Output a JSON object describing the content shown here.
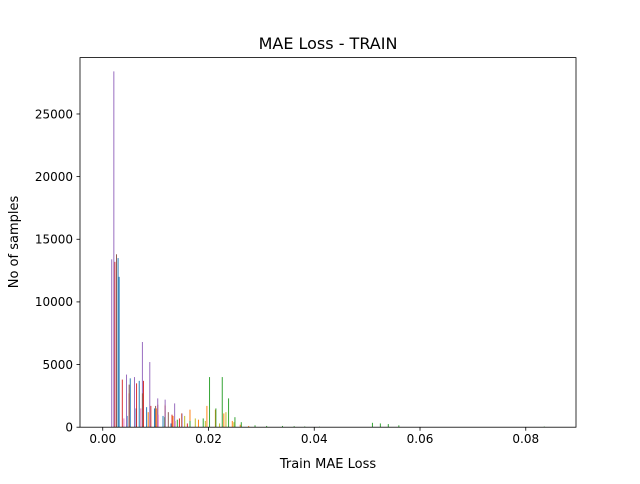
{
  "chart_data": {
    "type": "bar",
    "title": "MAE Loss - TRAIN",
    "xlabel": "Train MAE Loss",
    "ylabel": "No of samples",
    "xlim": [
      -0.0043,
      0.0895
    ],
    "ylim": [
      0,
      29500
    ],
    "xticks": [
      0.0,
      0.02,
      0.04,
      0.06,
      0.08
    ],
    "xtick_labels": [
      "0.00",
      "0.02",
      "0.04",
      "0.06",
      "0.08"
    ],
    "yticks": [
      0,
      5000,
      10000,
      15000,
      20000,
      25000
    ],
    "ytick_labels": [
      "0",
      "5000",
      "10000",
      "15000",
      "20000",
      "25000"
    ],
    "grid": false,
    "legend": "none",
    "bar_width_data": 0.00018,
    "series": [
      {
        "color": "#1f77b4",
        "x": [
          0.0029,
          0.0031,
          0.0046,
          0.0052,
          0.0063,
          0.0069,
          0.0083,
          0.0098,
          0.0114,
          0.0129
        ],
        "values": [
          13500,
          12000,
          900,
          3900,
          1500,
          3700,
          1600,
          1500,
          900,
          300
        ]
      },
      {
        "color": "#ff7f0e",
        "x": [
          0.0086,
          0.0102,
          0.0118,
          0.0133,
          0.0149,
          0.0165,
          0.0181,
          0.0197,
          0.0213,
          0.0229,
          0.0245,
          0.026,
          0.0276
        ],
        "values": [
          1200,
          1500,
          1800,
          900,
          1100,
          1400,
          600,
          1700,
          1400,
          1100,
          500,
          200,
          100
        ]
      },
      {
        "color": "#2ca02c",
        "x": [
          0.0117,
          0.0141,
          0.0165,
          0.019,
          0.0202,
          0.0214,
          0.0226,
          0.0238,
          0.025,
          0.0262,
          0.0288,
          0.031,
          0.034,
          0.0362,
          0.0382,
          0.041,
          0.051,
          0.0525,
          0.054,
          0.056,
          0.0835
        ],
        "values": [
          800,
          600,
          500,
          700,
          4000,
          1500,
          4000,
          2300,
          800,
          400,
          150,
          100,
          100,
          80,
          60,
          40,
          350,
          300,
          250,
          150,
          50
        ]
      },
      {
        "color": "#d62728",
        "x": [
          0.0023,
          0.0037,
          0.005,
          0.0064,
          0.0077,
          0.0091,
          0.0104,
          0.0118,
          0.0131,
          0.0145,
          0.016
        ],
        "values": [
          13200,
          3800,
          2700,
          3500,
          3700,
          1700,
          1800,
          1700,
          1000,
          700,
          300
        ]
      },
      {
        "color": "#9467bd",
        "x": [
          0.0017,
          0.0021,
          0.0045,
          0.006,
          0.0075,
          0.0089,
          0.0104,
          0.0118,
          0.0136,
          0.015
        ],
        "values": [
          13400,
          28400,
          4200,
          4000,
          6800,
          5200,
          2300,
          2200,
          1900,
          1100
        ]
      },
      {
        "color": "#8c564b",
        "x": [
          0.0026,
          0.005,
          0.0075,
          0.01,
          0.0124
        ],
        "values": [
          13800,
          3400,
          2700,
          1700,
          1200
        ]
      },
      {
        "color": "#e377c2",
        "x": [
          0.004,
          0.0072,
          0.0105,
          0.0137
        ],
        "values": [
          700,
          1500,
          1000,
          500
        ]
      },
      {
        "color": "#bcbd22",
        "x": [
          0.0155,
          0.0175,
          0.0194,
          0.0221,
          0.0233,
          0.0248
        ],
        "values": [
          900,
          700,
          500,
          300,
          1200,
          400
        ]
      }
    ]
  }
}
